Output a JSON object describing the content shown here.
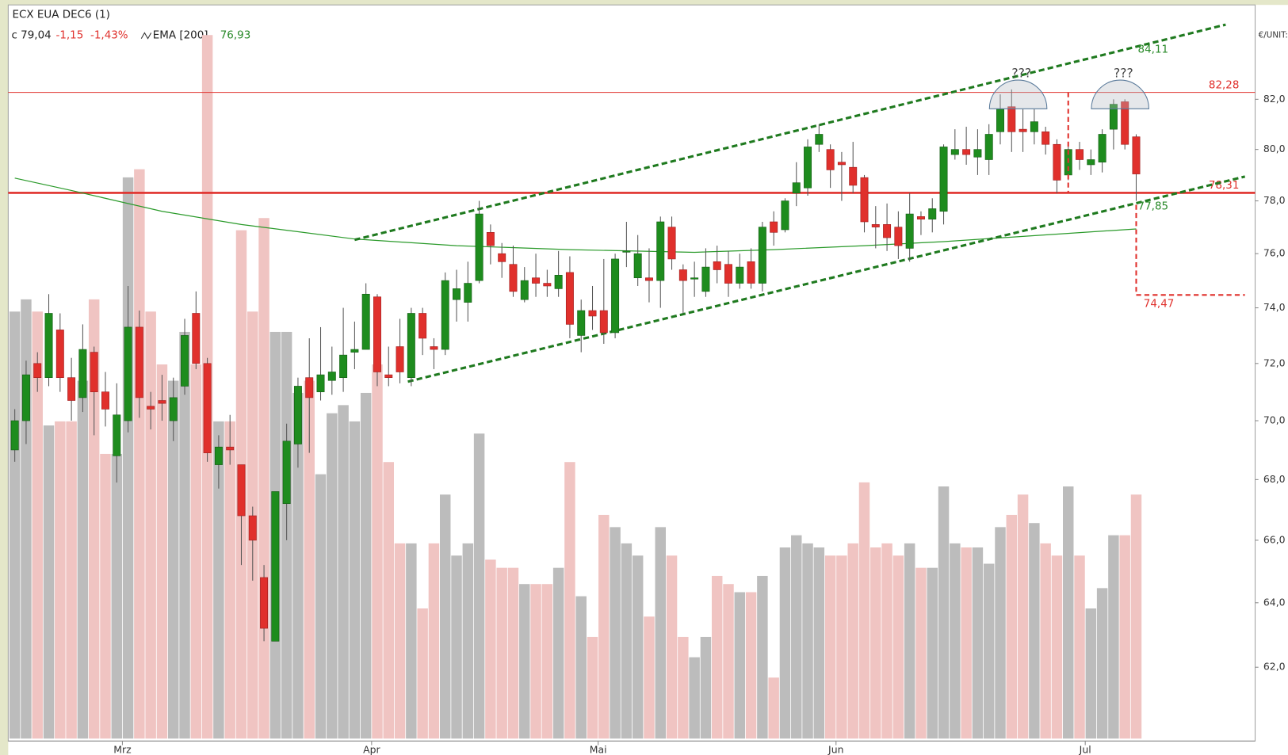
{
  "chart_data": {
    "type": "candlestick",
    "title": "ECX EUA DEC6 (1)",
    "info": [
      "c 79,04",
      "-1,15",
      "-1,43%"
    ],
    "indicator": {
      "name": "EMA [200]",
      "value_label": "76,93"
    },
    "unit": "€/UNIT:",
    "log_scale": true,
    "ylim": [
      59.86,
      85.83
    ],
    "yticks": [
      {
        "value": 62,
        "label": "62,0"
      },
      {
        "value": 64,
        "label": "64,0"
      },
      {
        "value": 66,
        "label": "66,0"
      },
      {
        "value": 68,
        "label": "68,0"
      },
      {
        "value": 70,
        "label": "70,0"
      },
      {
        "value": 72,
        "label": "72,0"
      },
      {
        "value": 74,
        "label": "74,0"
      },
      {
        "value": 76,
        "label": "76,0"
      },
      {
        "value": 78,
        "label": "78,0"
      },
      {
        "value": 80,
        "label": "80,0"
      },
      {
        "value": 82,
        "label": "82,0"
      }
    ],
    "categories": [
      null,
      null,
      null,
      null,
      null,
      null,
      null,
      null,
      null,
      null,
      "Mrz",
      null,
      null,
      null,
      null,
      null,
      null,
      null,
      null,
      null,
      null,
      null,
      null,
      null,
      null,
      null,
      null,
      null,
      null,
      null,
      null,
      null,
      "Apr",
      null,
      null,
      null,
      null,
      null,
      null,
      null,
      null,
      null,
      null,
      null,
      null,
      null,
      null,
      null,
      null,
      null,
      null,
      null,
      "Mai",
      null,
      null,
      null,
      null,
      null,
      null,
      null,
      null,
      null,
      null,
      null,
      null,
      null,
      null,
      null,
      null,
      null,
      null,
      null,
      null,
      "Jun",
      null,
      null,
      null,
      null,
      null,
      null,
      null,
      null,
      null,
      null,
      null,
      null,
      null,
      null,
      null,
      null,
      null,
      null,
      null,
      null,
      null,
      "Jul",
      null,
      null,
      null,
      null
    ],
    "open": [
      69.0,
      70.0,
      72.0,
      71.5,
      73.2,
      71.5,
      70.8,
      72.4,
      71.0,
      68.8,
      70.0,
      73.3,
      70.5,
      70.7,
      70.0,
      71.2,
      73.8,
      72.0,
      68.5,
      69.1,
      68.5,
      66.8,
      64.8,
      62.8,
      67.2,
      69.2,
      71.5,
      71.0,
      71.4,
      71.5,
      72.4,
      72.5,
      74.4,
      71.6,
      72.6,
      71.5,
      73.8,
      72.6,
      72.5,
      74.3,
      74.2,
      75.0,
      76.8,
      76.0,
      75.6,
      74.3,
      75.1,
      74.9,
      74.7,
      75.3,
      73.0,
      73.9,
      73.9,
      73.1,
      76.1,
      75.1,
      75.1,
      75.0,
      77.0,
      75.4,
      75.1,
      74.6,
      75.7,
      75.6,
      74.9,
      75.7,
      74.9,
      77.2,
      76.9,
      78.3,
      78.5,
      80.2,
      80.0,
      79.5,
      79.3,
      78.9,
      77.1,
      77.1,
      77.0,
      76.2,
      77.4,
      77.3,
      77.6,
      79.8,
      80.0,
      79.7,
      79.6,
      80.7,
      81.7,
      80.8,
      80.7,
      80.7,
      80.2,
      79.0,
      80.0,
      79.4,
      79.5,
      80.8,
      81.9,
      80.5
    ],
    "high": [
      70.4,
      72.1,
      72.4,
      74.5,
      73.8,
      72.2,
      73.4,
      72.6,
      71.7,
      71.3,
      74.8,
      73.9,
      71.0,
      71.6,
      71.5,
      73.6,
      74.6,
      72.2,
      69.5,
      70.2,
      68.5,
      67.1,
      65.2,
      67.6,
      69.9,
      71.5,
      72.9,
      73.3,
      72.6,
      74.0,
      73.5,
      74.9,
      74.5,
      72.6,
      73.6,
      74.0,
      74.0,
      72.9,
      75.3,
      75.4,
      75.7,
      78.0,
      77.1,
      76.4,
      76.3,
      75.5,
      76.0,
      75.4,
      76.1,
      75.9,
      74.3,
      74.8,
      75.8,
      76.0,
      77.2,
      76.7,
      76.2,
      77.4,
      77.4,
      75.6,
      75.7,
      76.2,
      76.3,
      76.1,
      76.0,
      76.2,
      77.2,
      77.6,
      78.1,
      79.5,
      80.4,
      81.0,
      80.2,
      79.9,
      80.3,
      79.0,
      77.8,
      77.9,
      77.6,
      78.3,
      77.6,
      78.1,
      80.2,
      80.8,
      80.9,
      80.8,
      81.0,
      82.2,
      82.4,
      81.6,
      81.6,
      80.9,
      80.4,
      80.3,
      80.3,
      80.0,
      80.8,
      82.0,
      82.0,
      80.6
    ],
    "low": [
      68.6,
      69.2,
      71.0,
      71.2,
      71.0,
      70.0,
      70.3,
      69.5,
      69.8,
      67.9,
      69.6,
      70.1,
      69.7,
      70.0,
      69.3,
      70.9,
      71.8,
      68.6,
      67.7,
      68.5,
      65.2,
      64.7,
      62.8,
      62.8,
      66.0,
      68.4,
      68.9,
      70.7,
      70.9,
      71.0,
      71.8,
      72.5,
      71.2,
      71.2,
      71.3,
      71.2,
      72.3,
      71.8,
      72.3,
      73.5,
      73.5,
      74.9,
      75.6,
      75.1,
      74.4,
      74.2,
      74.4,
      74.4,
      74.4,
      72.9,
      72.4,
      73.2,
      72.7,
      72.9,
      75.5,
      74.8,
      74.2,
      74.0,
      75.4,
      73.8,
      74.4,
      74.4,
      74.9,
      74.4,
      74.7,
      74.7,
      74.6,
      76.3,
      76.8,
      77.8,
      78.2,
      79.9,
      78.5,
      78.0,
      78.3,
      76.8,
      76.2,
      76.1,
      75.8,
      75.7,
      76.7,
      76.8,
      77.1,
      79.6,
      79.4,
      79.0,
      79.0,
      80.2,
      79.9,
      79.9,
      80.2,
      79.8,
      78.3,
      78.8,
      79.2,
      79.0,
      79.1,
      80.0,
      80.0,
      78.0
    ],
    "close": [
      70.0,
      71.6,
      71.5,
      73.8,
      71.5,
      70.7,
      72.5,
      71.0,
      70.4,
      70.2,
      73.3,
      70.8,
      70.4,
      70.6,
      70.8,
      73.0,
      72.0,
      68.9,
      69.1,
      69.0,
      66.8,
      66.0,
      63.2,
      67.6,
      69.3,
      71.2,
      70.8,
      71.6,
      71.7,
      72.3,
      72.5,
      74.5,
      71.7,
      71.5,
      71.7,
      73.8,
      72.9,
      72.5,
      75.0,
      74.7,
      74.9,
      77.5,
      76.3,
      75.7,
      74.6,
      75.0,
      74.9,
      74.8,
      75.2,
      73.4,
      73.9,
      73.7,
      73.1,
      75.8,
      76.1,
      76.0,
      75.0,
      77.2,
      75.8,
      75.0,
      75.1,
      75.5,
      75.4,
      74.9,
      75.5,
      74.9,
      77.0,
      76.8,
      78.0,
      78.7,
      80.1,
      80.6,
      79.2,
      79.4,
      78.6,
      77.2,
      77.0,
      76.6,
      76.3,
      77.5,
      77.3,
      77.7,
      80.1,
      80.0,
      79.8,
      80.0,
      80.6,
      81.6,
      80.7,
      80.7,
      81.1,
      80.2,
      78.8,
      80.0,
      79.6,
      79.6,
      80.6,
      81.8,
      80.2,
      79.04
    ],
    "volume": [
      105,
      108,
      105,
      77,
      78,
      78,
      88,
      108,
      70,
      70,
      138,
      140,
      105,
      92,
      88,
      100,
      92,
      173,
      78,
      78,
      125,
      105,
      128,
      100,
      100,
      85,
      88,
      65,
      80,
      82,
      78,
      85,
      92,
      68,
      48,
      48,
      32,
      48,
      60,
      45,
      48,
      75,
      44,
      42,
      42,
      38,
      38,
      38,
      42,
      68,
      35,
      25,
      55,
      52,
      48,
      45,
      30,
      52,
      45,
      25,
      20,
      25,
      40,
      38,
      36,
      36,
      40,
      15,
      47,
      50,
      48,
      47,
      45,
      45,
      48,
      63,
      47,
      48,
      45,
      48,
      42,
      42,
      62,
      48,
      47,
      47,
      43,
      52,
      55,
      60,
      53,
      48,
      45,
      62,
      45,
      32,
      37,
      50,
      50,
      60
    ],
    "volume_lim": [
      0,
      180
    ],
    "colors": {
      "up": "#1e8c1e",
      "down": "#e0302c",
      "volume_up": "#bcbcbc",
      "volume_down": "#f0c4c2",
      "ema": "#2a9a2a",
      "trend": "#1f7a1f",
      "level": "#e0302c"
    },
    "ema": {
      "x": [
        0,
        5,
        13,
        20,
        30,
        39,
        49,
        60,
        67,
        75,
        82,
        89,
        99
      ],
      "values": [
        78.88,
        78.4,
        77.6,
        77.1,
        76.55,
        76.3,
        76.15,
        76.05,
        76.15,
        76.3,
        76.45,
        76.65,
        76.93
      ]
    },
    "trendlines": [
      {
        "x": [
          30.0,
          106.9
        ],
        "values": [
          76.52,
          85.07
        ]
      },
      {
        "x": [
          34.7,
          108.6
        ],
        "values": [
          71.36,
          78.94
        ]
      }
    ],
    "levels": [
      {
        "value": 82.28,
        "label": "82,28",
        "width": 1
      },
      {
        "value": 78.31,
        "label": "78,31",
        "width": 2.5
      }
    ],
    "projection": {
      "x": 99,
      "from": 77.85,
      "to": 74.47,
      "label": "74,47",
      "x_end": 108.6
    },
    "range_marker": {
      "x": 93,
      "from": 82.28,
      "to": 78.31
    },
    "annotations": [
      {
        "value": 84.11,
        "label": "84,11"
      },
      {
        "value": 77.85,
        "label": "77,85"
      }
    ],
    "questions": [
      {
        "x": 88,
        "label": "???"
      },
      {
        "x": 97,
        "label": "???"
      }
    ]
  }
}
